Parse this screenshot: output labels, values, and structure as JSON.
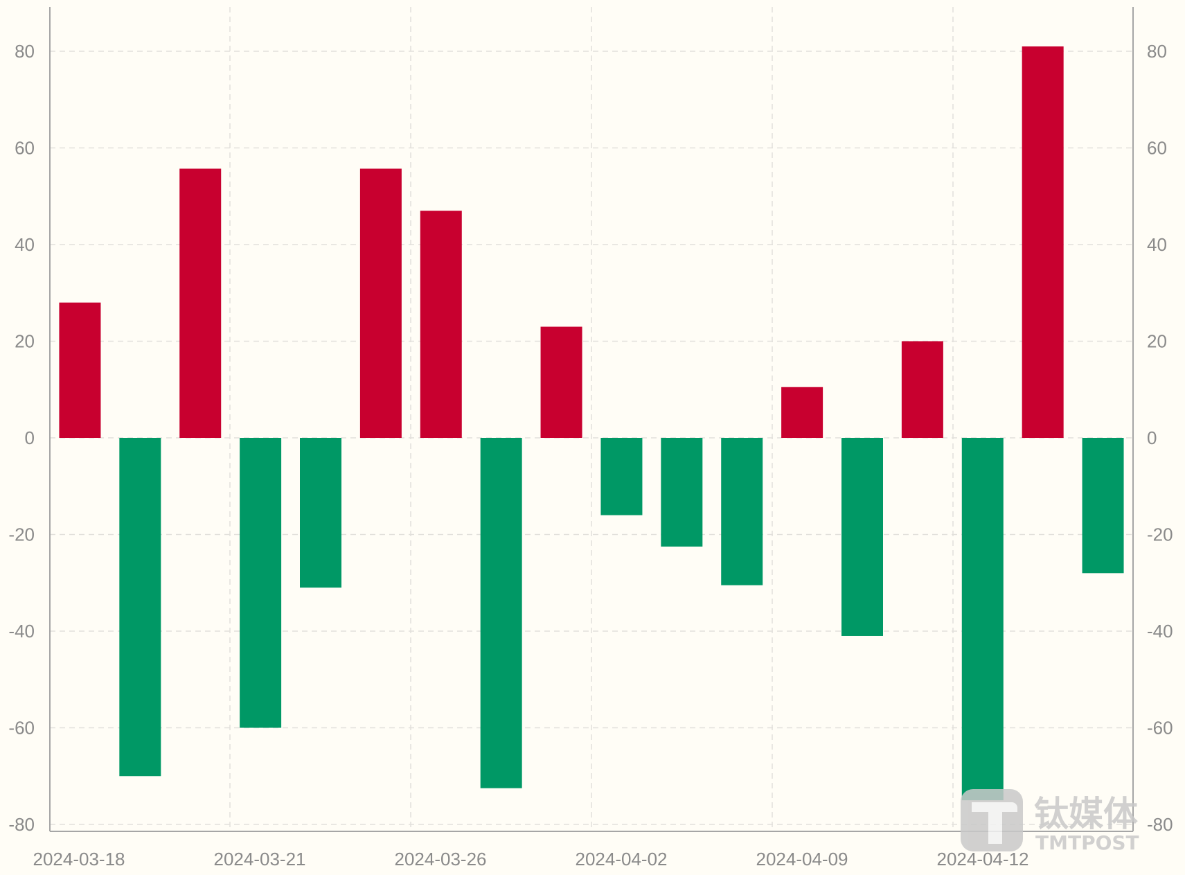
{
  "chart_data": {
    "type": "bar",
    "title": "",
    "xlabel": "",
    "ylabel": "",
    "ylim": [
      -80,
      80
    ],
    "yticks": [
      -80,
      -60,
      -40,
      -20,
      0,
      20,
      40,
      60,
      80
    ],
    "grid": true,
    "x_tick_labels": [
      "2024-03-18",
      "2024-03-21",
      "2024-03-26",
      "2024-04-02",
      "2024-04-09",
      "2024-04-12"
    ],
    "values": [
      28,
      -70,
      55.7,
      -60,
      -31,
      55.7,
      47,
      -72.5,
      23,
      -16,
      -22.5,
      -30.5,
      10.5,
      -41,
      20,
      -75,
      81,
      -28
    ],
    "colors": {
      "positive": "#c8002f",
      "negative": "#009865"
    },
    "background": "#fffdf6"
  },
  "watermark": {
    "brand": "钛媒体",
    "sub": "TMTPOST"
  }
}
